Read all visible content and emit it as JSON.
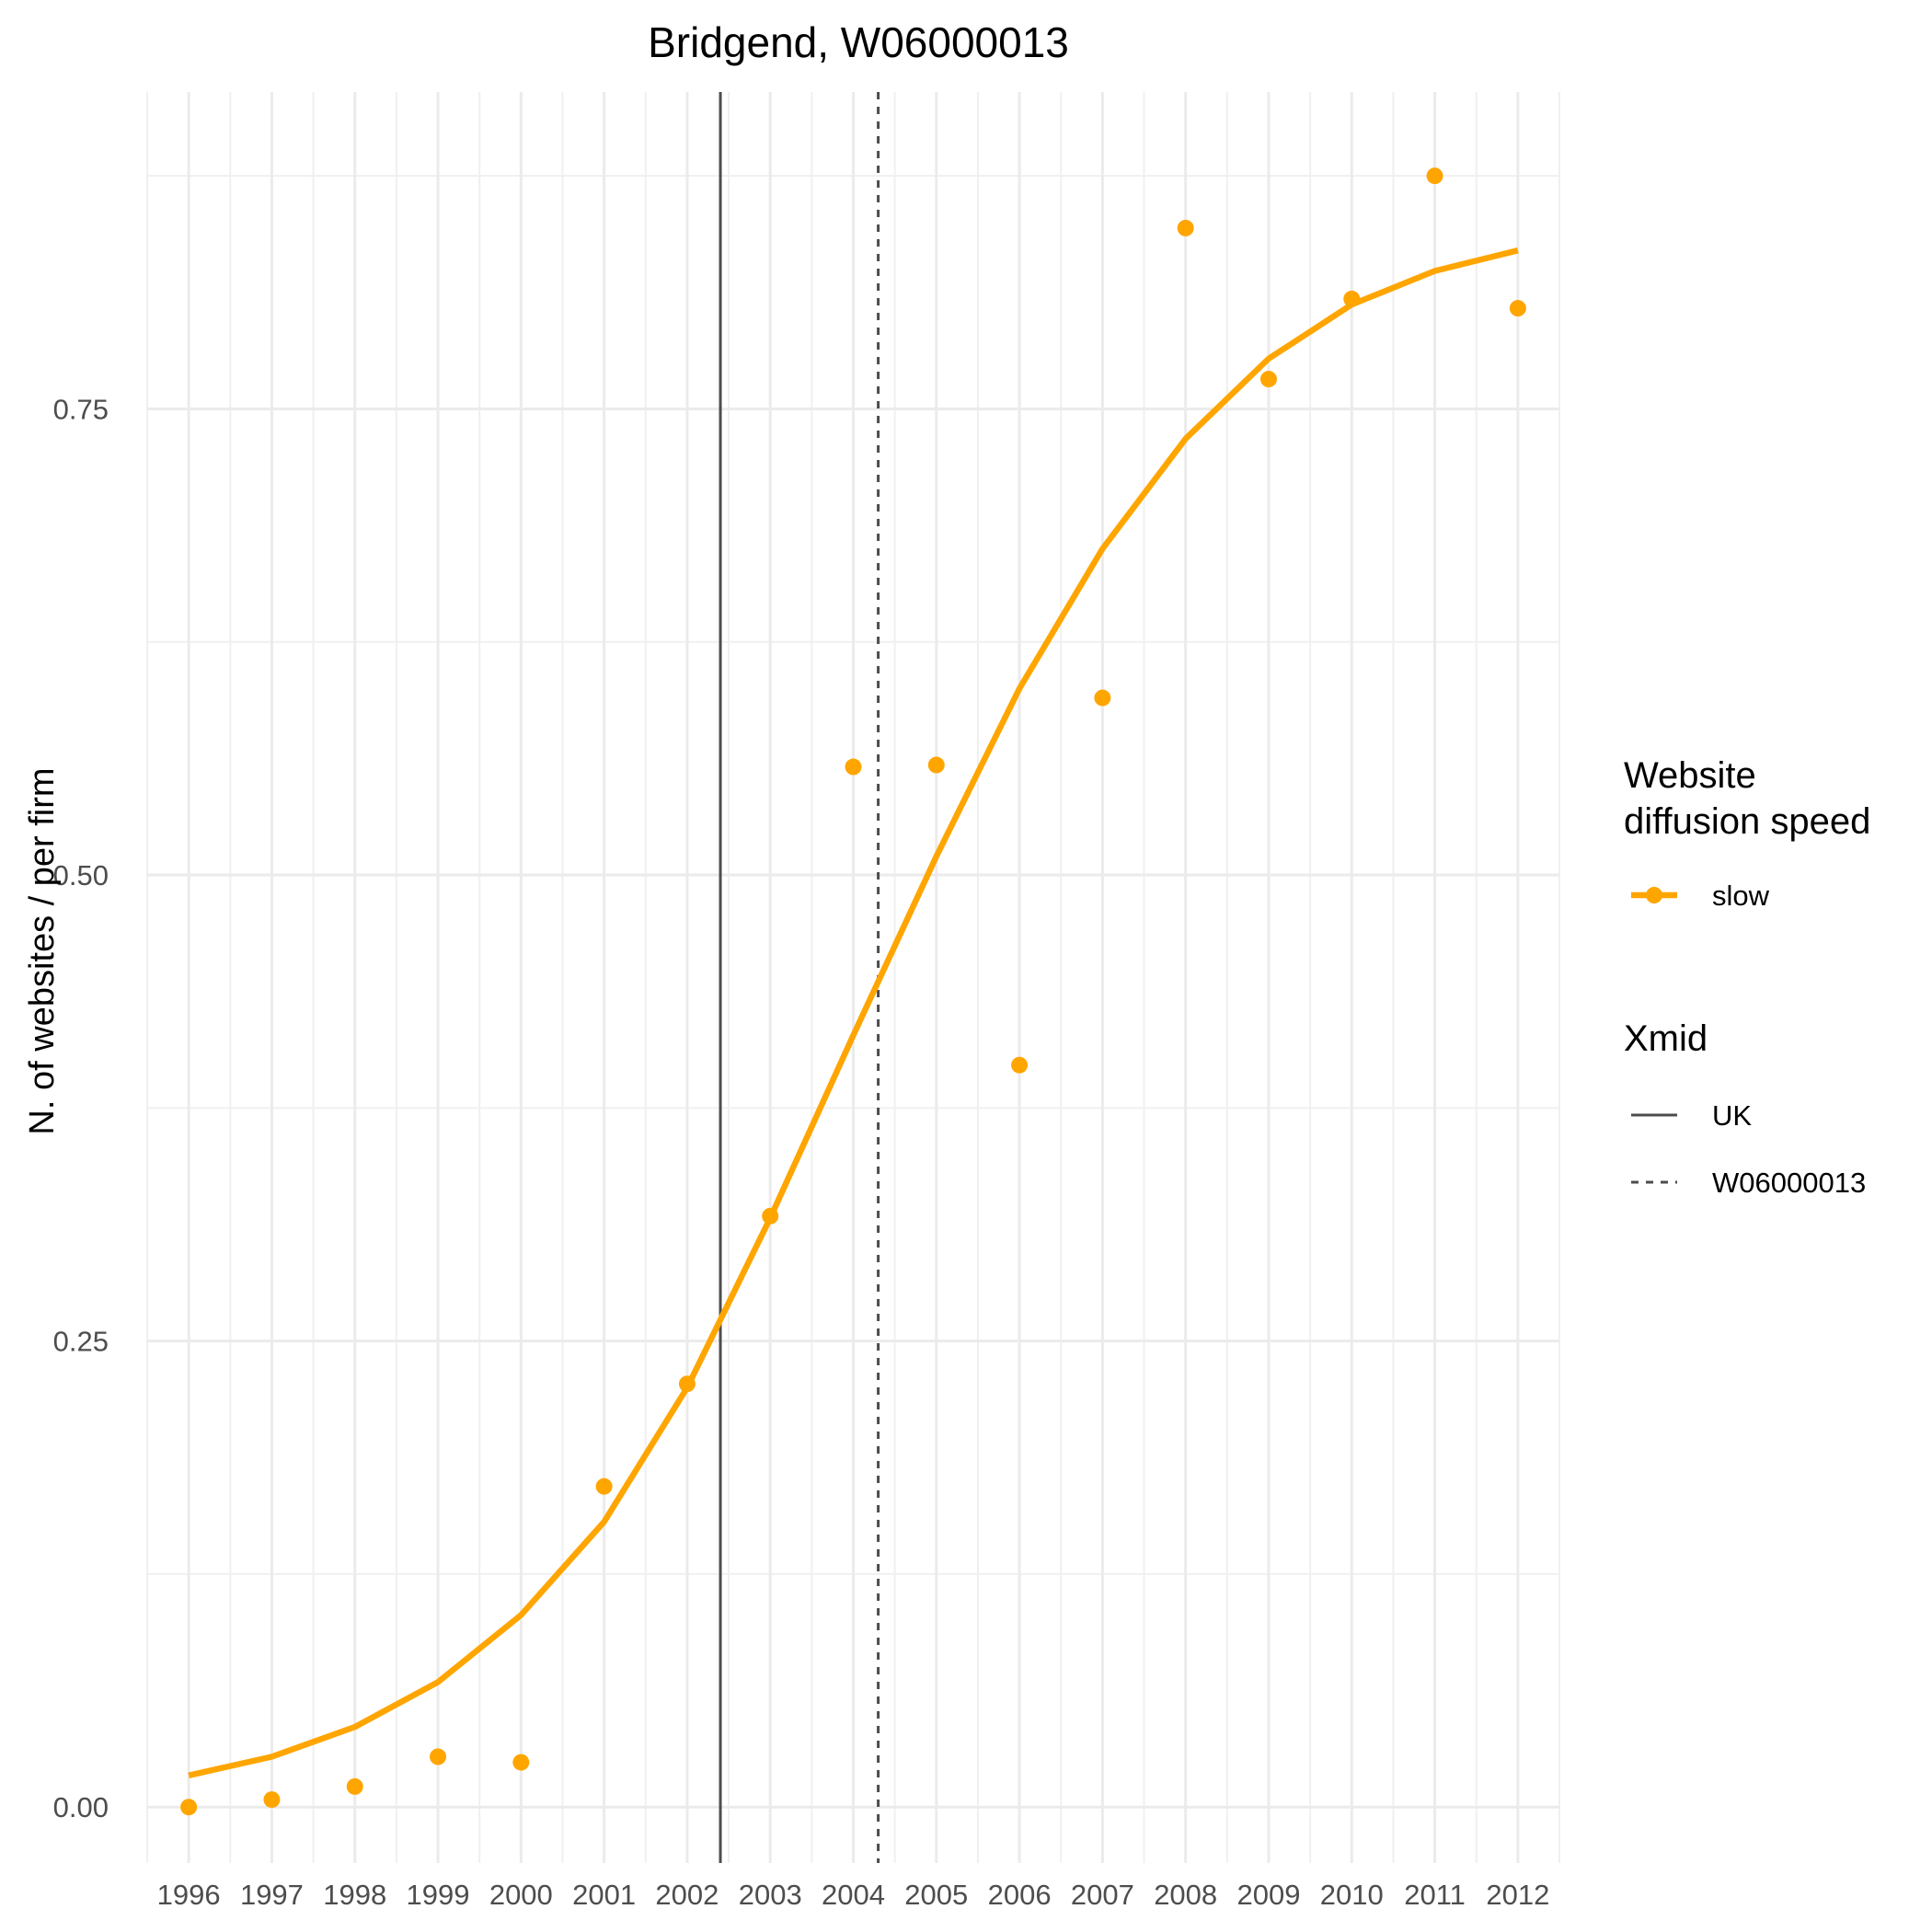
{
  "chart_data": {
    "type": "line",
    "title": "Bridgend, W06000013",
    "xlabel": "",
    "ylabel": "N. of websites / per firm",
    "x": [
      1996,
      1997,
      1998,
      1999,
      2000,
      2001,
      2002,
      2003,
      2004,
      2005,
      2006,
      2007,
      2008,
      2009,
      2010,
      2011,
      2012
    ],
    "x_tick_labels": [
      "1996",
      "1997",
      "1998",
      "1999",
      "2000",
      "2001",
      "2002",
      "2003",
      "2004",
      "2005",
      "2006",
      "2007",
      "2008",
      "2009",
      "2010",
      "2011",
      "2012"
    ],
    "y_ticks": [
      0.0,
      0.25,
      0.5,
      0.75
    ],
    "y_tick_labels": [
      "0.00",
      "0.25",
      "0.50",
      "0.75"
    ],
    "xlim": [
      1995.5,
      2012.5
    ],
    "ylim": [
      -0.03,
      0.92
    ],
    "grid": true,
    "series": [
      {
        "name": "slow",
        "color": "#FFA500",
        "fitted": [
          0.017,
          0.027,
          0.043,
          0.067,
          0.103,
          0.153,
          0.225,
          0.316,
          0.414,
          0.51,
          0.6,
          0.675,
          0.734,
          0.777,
          0.806,
          0.824,
          0.835
        ],
        "observed": [
          0.0,
          0.004,
          0.011,
          0.027,
          0.024,
          0.172,
          0.227,
          0.317,
          0.558,
          0.559,
          0.398,
          0.595,
          0.847,
          0.766,
          0.809,
          0.875,
          0.804
        ]
      }
    ],
    "vlines": [
      {
        "name": "UK",
        "x": 2002.4,
        "style": "solid",
        "color": "#4d4d4d"
      },
      {
        "name": "W06000013",
        "x": 2004.3,
        "style": "dotted",
        "color": "#4d4d4d"
      }
    ],
    "legend": {
      "position": "right",
      "groups": [
        {
          "title_lines": [
            "Website",
            "diffusion speed"
          ],
          "entries": [
            "slow"
          ]
        },
        {
          "title_lines": [
            "Xmid"
          ],
          "entries": [
            "UK",
            "W06000013"
          ]
        }
      ]
    }
  }
}
